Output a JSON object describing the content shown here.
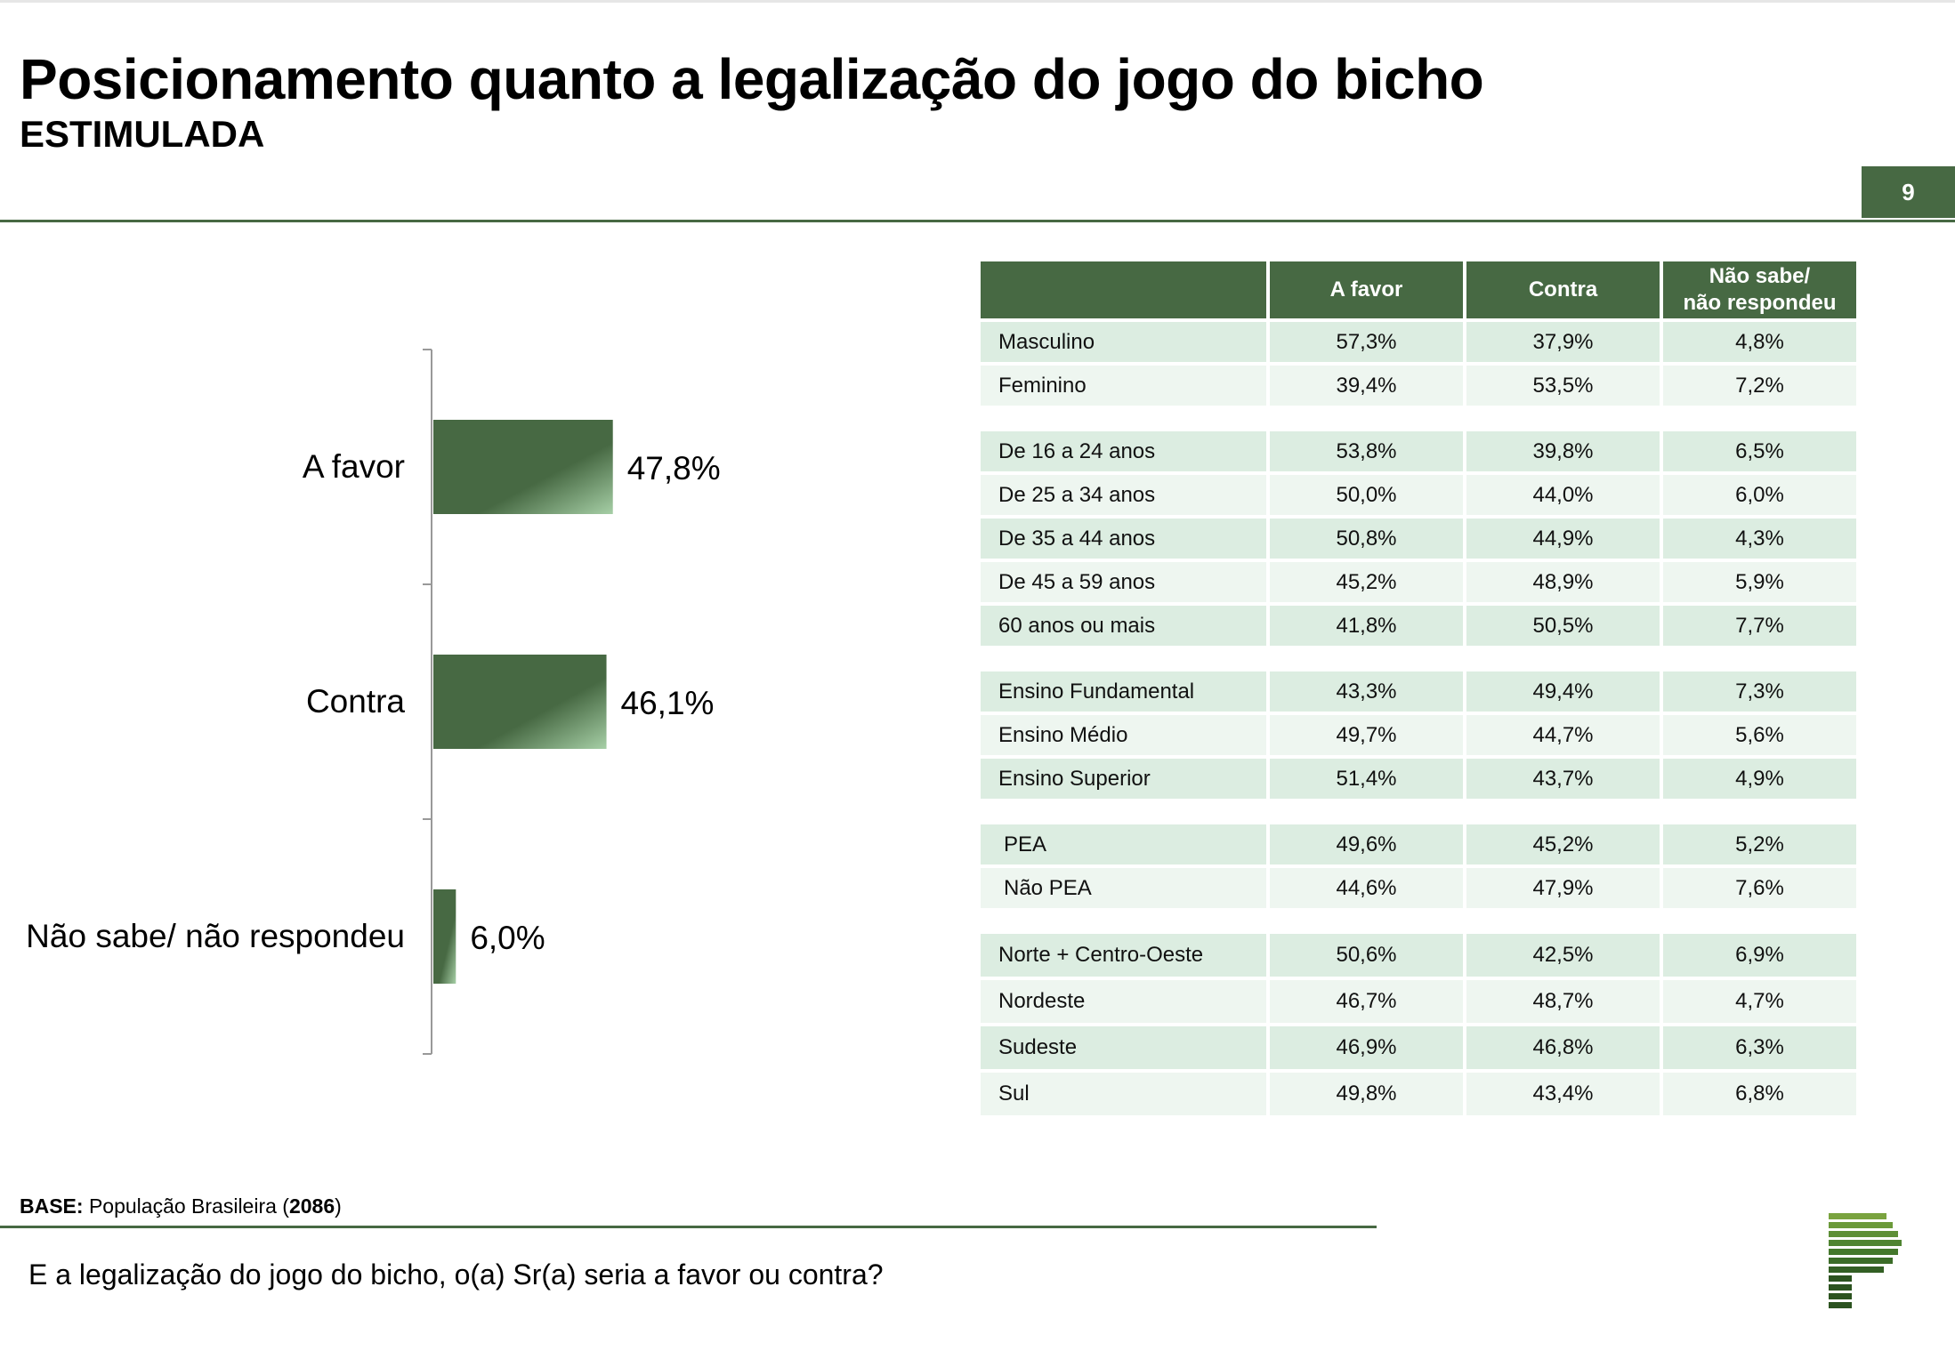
{
  "header": {
    "title": "Posicionamento quanto a legalização do jogo do bicho",
    "subtitle": "ESTIMULADA",
    "page_number": "9"
  },
  "colors": {
    "accent": "#476943",
    "row_dark": "#dcede1",
    "row_light": "#eef6f0"
  },
  "chart_data": {
    "type": "bar",
    "orientation": "horizontal",
    "categories": [
      "A favor",
      "Contra",
      "Não sabe/ não respondeu"
    ],
    "values": [
      47.8,
      46.1,
      6.0
    ],
    "value_labels": [
      "47,8%",
      "46,1%",
      "6,0%"
    ],
    "title": "",
    "xlabel": "",
    "ylabel": "",
    "xlim": [
      0,
      100
    ]
  },
  "table": {
    "headers": [
      "",
      "A favor",
      "Contra",
      "Não sabe/\nnão respondeu"
    ],
    "groups": [
      {
        "rows": [
          [
            "Masculino",
            "57,3%",
            "37,9%",
            "4,8%"
          ],
          [
            "Feminino",
            "39,4%",
            "53,5%",
            "7,2%"
          ]
        ]
      },
      {
        "rows": [
          [
            "De 16 a 24 anos",
            "53,8%",
            "39,8%",
            "6,5%"
          ],
          [
            "De 25 a 34 anos",
            "50,0%",
            "44,0%",
            "6,0%"
          ],
          [
            "De 35 a 44 anos",
            "50,8%",
            "44,9%",
            "4,3%"
          ],
          [
            "De 45 a 59 anos",
            "45,2%",
            "48,9%",
            "5,9%"
          ],
          [
            "60 anos ou mais",
            "41,8%",
            "50,5%",
            "7,7%"
          ]
        ]
      },
      {
        "rows": [
          [
            "Ensino Fundamental",
            "43,3%",
            "49,4%",
            "7,3%"
          ],
          [
            "Ensino Médio",
            "49,7%",
            "44,7%",
            "5,6%"
          ],
          [
            "Ensino Superior",
            "51,4%",
            "43,7%",
            "4,9%"
          ]
        ]
      },
      {
        "rows": [
          [
            " PEA",
            "49,6%",
            "45,2%",
            "5,2%"
          ],
          [
            " Não PEA",
            "44,6%",
            "47,9%",
            "7,6%"
          ]
        ]
      },
      {
        "rows": [
          [
            "Norte + Centro-Oeste",
            "50,6%",
            "42,5%",
            "6,9%"
          ],
          [
            "Nordeste",
            "46,7%",
            "48,7%",
            "4,7%"
          ],
          [
            "Sudeste",
            "46,9%",
            "46,8%",
            "6,3%"
          ],
          [
            "Sul",
            "49,8%",
            "43,4%",
            "6,8%"
          ]
        ]
      }
    ]
  },
  "footer": {
    "base_label": "BASE:",
    "base_text": " População Brasileira (",
    "base_number": "2086",
    "base_close": ")",
    "question": "E a legalização do jogo do bicho, o(a) Sr(a) seria a favor ou contra?"
  }
}
